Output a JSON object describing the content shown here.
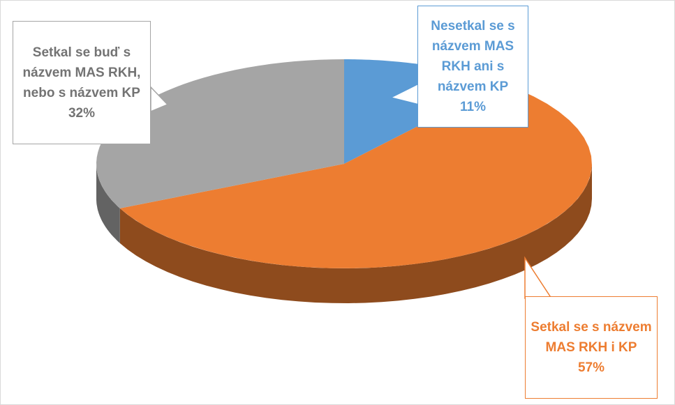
{
  "chart_data": {
    "type": "pie",
    "categories": [
      "Nesetkal se s názvem MAS RKH ani s názvem KP",
      "Setkal se s názvem MAS RKH i KP",
      "Setkal se buď s názvem MAS RKH, nebo s názvem KP"
    ],
    "values": [
      11,
      57,
      32
    ],
    "value_labels": [
      "11%",
      "57%",
      "32%"
    ],
    "colors": [
      "#5b9bd5",
      "#ed7d31",
      "#a5a5a5"
    ],
    "label_colors": [
      "#5b9bd5",
      "#ed7d31",
      "#a5a5a5"
    ]
  }
}
